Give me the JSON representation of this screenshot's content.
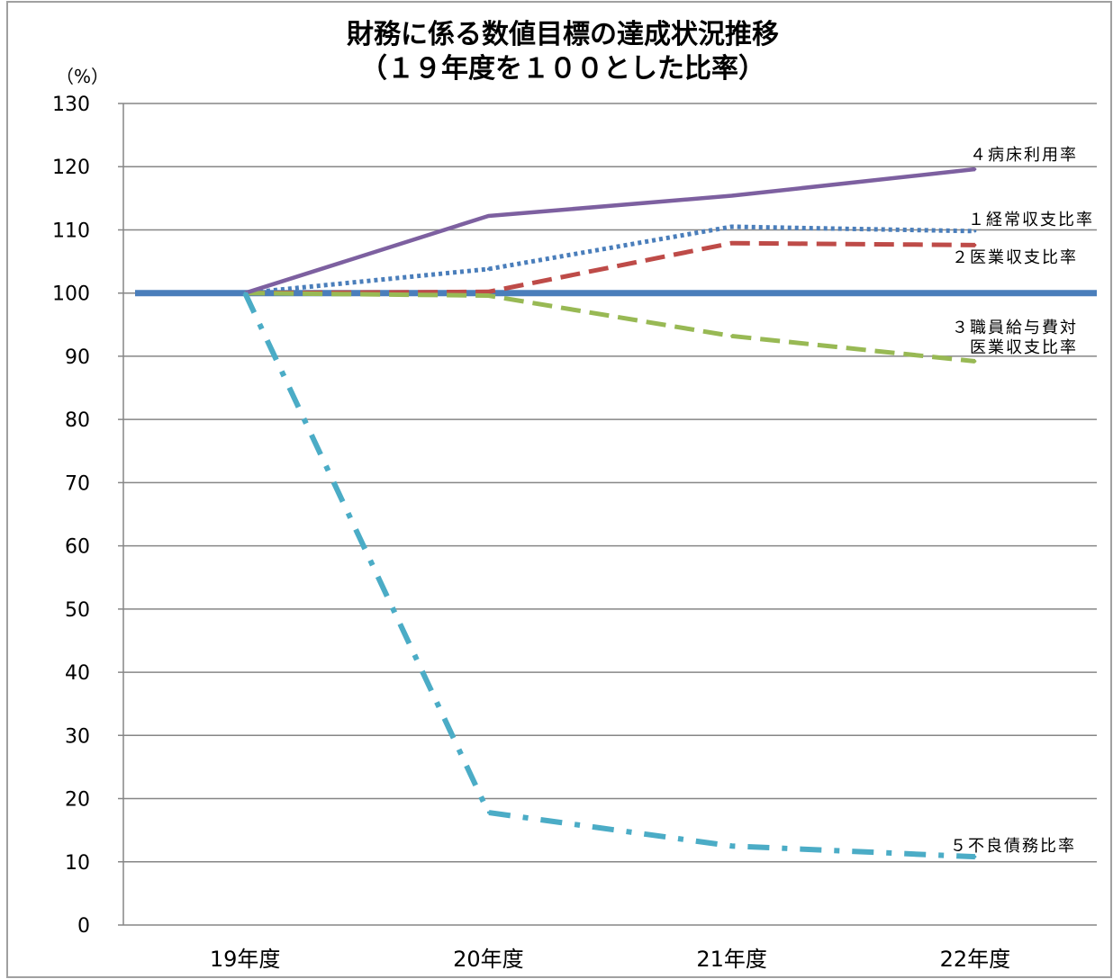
{
  "chart_data": {
    "type": "line",
    "title": "財務に係る数値目標の達成状況推移",
    "subtitle": "（１９年度を１００とした比率）",
    "ylabel": "（%）",
    "xlabel": "",
    "categories": [
      "19年度",
      "20年度",
      "21年度",
      "22年度"
    ],
    "ylim": [
      0,
      130
    ],
    "yticks": [
      0,
      10,
      20,
      30,
      40,
      50,
      60,
      70,
      80,
      90,
      100,
      110,
      120,
      130
    ],
    "grid": true,
    "baseline": {
      "value": 100,
      "color": "#4a7ebb"
    },
    "series": [
      {
        "name": "１経常収支比率",
        "values": [
          100,
          103.8,
          110.5,
          109.8
        ],
        "color": "#4a7ebb",
        "style": "dotted"
      },
      {
        "name": "２医業収支比率",
        "values": [
          100,
          100.2,
          107.9,
          107.6
        ],
        "color": "#be4b48",
        "style": "dashed"
      },
      {
        "name": "３職員給与費対医業収支比率",
        "label_lines": [
          "３職員給与費対",
          "医業収支比率"
        ],
        "values": [
          100,
          99.6,
          93.2,
          89.2
        ],
        "color": "#98b954",
        "style": "dashed"
      },
      {
        "name": "４病床利用率",
        "values": [
          100,
          112.2,
          115.4,
          119.6
        ],
        "color": "#7d60a0",
        "style": "solid"
      },
      {
        "name": "５不良債務比率",
        "values": [
          100,
          17.8,
          12.5,
          10.8
        ],
        "color": "#4bacc6",
        "style": "dashdot"
      }
    ]
  }
}
